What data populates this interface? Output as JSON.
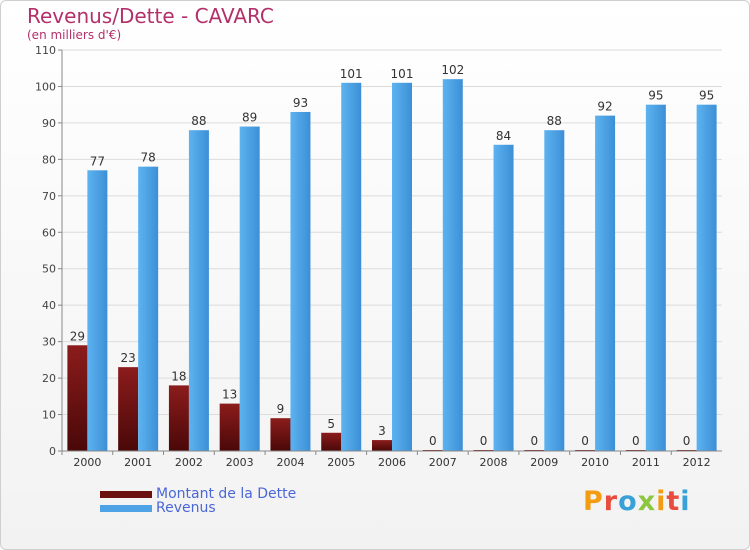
{
  "chart_data": {
    "type": "bar",
    "title": "Revenus/Dette - CAVARC",
    "subtitle": "(en milliers d'€)",
    "categories": [
      "2000",
      "2001",
      "2002",
      "2003",
      "2004",
      "2005",
      "2006",
      "2007",
      "2008",
      "2009",
      "2010",
      "2011",
      "2012"
    ],
    "series": [
      {
        "name": "Montant de la Dette",
        "color": "#7a1414",
        "values": [
          29,
          23,
          18,
          13,
          9,
          5,
          3,
          0,
          0,
          0,
          0,
          0,
          0
        ]
      },
      {
        "name": "Revenus",
        "color": "#4da3e6",
        "values": [
          77,
          78,
          88,
          89,
          93,
          101,
          101,
          102,
          84,
          88,
          92,
          95,
          95
        ]
      }
    ],
    "ylim": [
      0,
      110
    ],
    "yticks": [
      0,
      10,
      20,
      30,
      40,
      50,
      60,
      70,
      80,
      90,
      100,
      110
    ],
    "grid": true,
    "legend": "bottom-left"
  },
  "logo": {
    "text": "Proxiti",
    "colors": [
      "#f39c12",
      "#e84c3d",
      "#3aa1d8",
      "#8dc63f"
    ]
  }
}
